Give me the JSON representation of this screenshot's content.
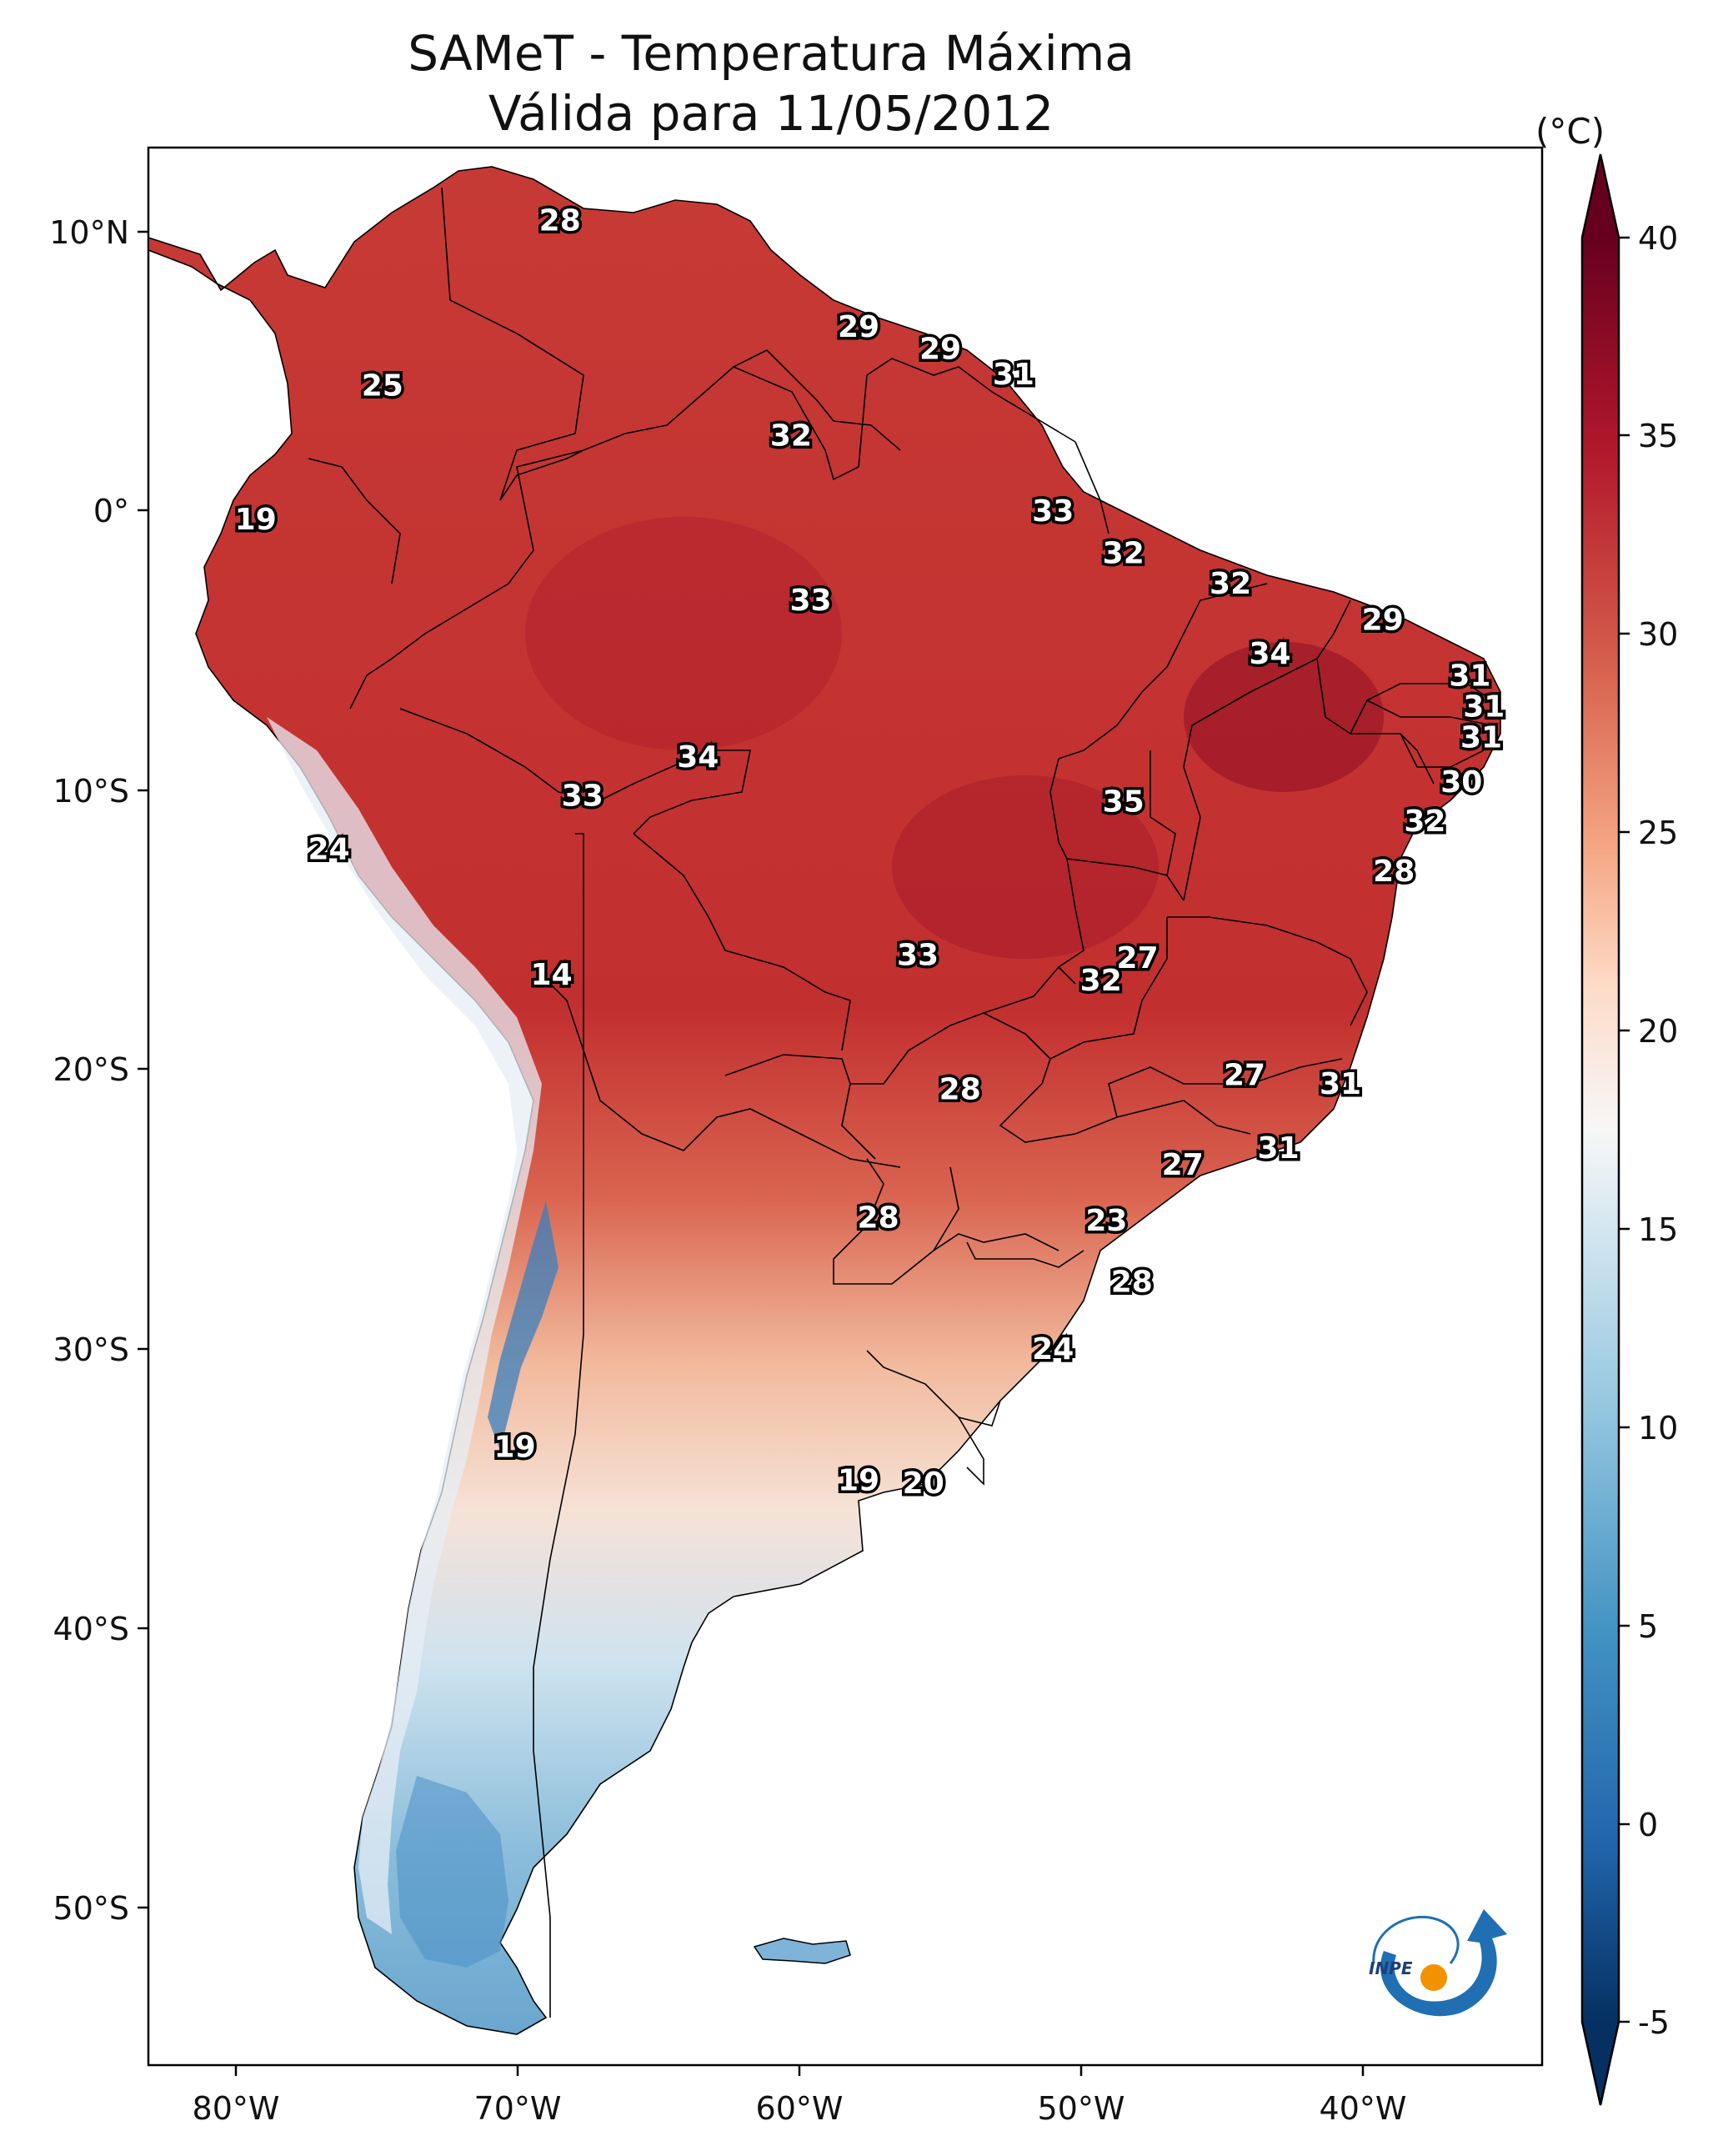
{
  "title": {
    "line1": "SAMeT - Temperatura Máxima",
    "line2": "Válida para 11/05/2012"
  },
  "axes": {
    "lon_ticks": [
      "80°W",
      "70°W",
      "60°W",
      "50°W",
      "40°W"
    ],
    "lat_ticks": [
      "10°N",
      "0°",
      "10°S",
      "20°S",
      "30°S",
      "40°S",
      "50°S"
    ]
  },
  "colorbar": {
    "unit": "(°C)",
    "ticks": [
      "40",
      "35",
      "30",
      "25",
      "20",
      "15",
      "10",
      "5",
      "0",
      "-5"
    ],
    "colors": [
      "#053061",
      "#2166ac",
      "#4393c3",
      "#92c5de",
      "#d1e5f0",
      "#f7f7f7",
      "#fddbc7",
      "#f4a582",
      "#d6604d",
      "#b2182b",
      "#67001f"
    ]
  },
  "logo": {
    "text": "INPE",
    "colors": {
      "blue": "#1f6fb2",
      "orange": "#f29200"
    }
  },
  "temperature_labels": [
    {
      "text": "28",
      "lon": -68.5,
      "lat": 10.4
    },
    {
      "text": "29",
      "lon": -57.9,
      "lat": 6.6
    },
    {
      "text": "29",
      "lon": -55.0,
      "lat": 5.8
    },
    {
      "text": "31",
      "lon": -52.4,
      "lat": 4.9
    },
    {
      "text": "25",
      "lon": -74.8,
      "lat": 4.5
    },
    {
      "text": "32",
      "lon": -60.3,
      "lat": 2.7
    },
    {
      "text": "19",
      "lon": -79.3,
      "lat": -0.3
    },
    {
      "text": "33",
      "lon": -51.0,
      "lat": 0.0
    },
    {
      "text": "32",
      "lon": -48.5,
      "lat": -1.5
    },
    {
      "text": "32",
      "lon": -44.7,
      "lat": -2.6
    },
    {
      "text": "33",
      "lon": -59.6,
      "lat": -3.2
    },
    {
      "text": "29",
      "lon": -39.3,
      "lat": -3.9
    },
    {
      "text": "34",
      "lon": -43.3,
      "lat": -5.1
    },
    {
      "text": "31",
      "lon": -36.2,
      "lat": -5.9
    },
    {
      "text": "31",
      "lon": -35.7,
      "lat": -7.0
    },
    {
      "text": "31",
      "lon": -35.8,
      "lat": -8.1
    },
    {
      "text": "34",
      "lon": -63.6,
      "lat": -8.8
    },
    {
      "text": "30",
      "lon": -36.5,
      "lat": -9.7
    },
    {
      "text": "33",
      "lon": -67.7,
      "lat": -10.2
    },
    {
      "text": "35",
      "lon": -48.5,
      "lat": -10.4
    },
    {
      "text": "32",
      "lon": -37.8,
      "lat": -11.1
    },
    {
      "text": "24",
      "lon": -76.7,
      "lat": -12.1
    },
    {
      "text": "28",
      "lon": -38.9,
      "lat": -12.9
    },
    {
      "text": "33",
      "lon": -55.8,
      "lat": -15.9
    },
    {
      "text": "27",
      "lon": -48.0,
      "lat": -16.0
    },
    {
      "text": "14",
      "lon": -68.8,
      "lat": -16.6
    },
    {
      "text": "32",
      "lon": -49.3,
      "lat": -16.8
    },
    {
      "text": "27",
      "lon": -44.2,
      "lat": -20.2
    },
    {
      "text": "31",
      "lon": -40.8,
      "lat": -20.5
    },
    {
      "text": "28",
      "lon": -54.3,
      "lat": -20.7
    },
    {
      "text": "31",
      "lon": -43.0,
      "lat": -22.8
    },
    {
      "text": "27",
      "lon": -46.4,
      "lat": -23.4
    },
    {
      "text": "28",
      "lon": -57.2,
      "lat": -25.3
    },
    {
      "text": "23",
      "lon": -49.1,
      "lat": -25.4
    },
    {
      "text": "28",
      "lon": -48.2,
      "lat": -27.6
    },
    {
      "text": "24",
      "lon": -51.0,
      "lat": -30.0
    },
    {
      "text": "19",
      "lon": -70.1,
      "lat": -33.5
    },
    {
      "text": "19",
      "lon": -57.9,
      "lat": -34.7
    },
    {
      "text": "20",
      "lon": -55.6,
      "lat": -34.8
    }
  ]
}
